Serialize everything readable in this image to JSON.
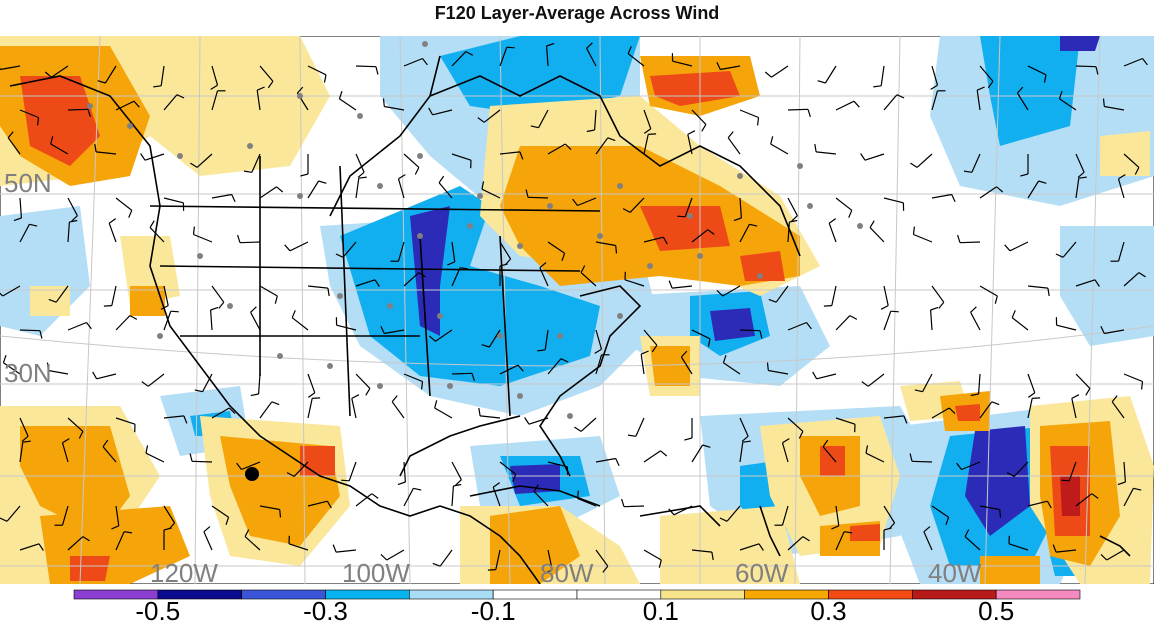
{
  "title": "F120 Layer-Average Across Wind",
  "map": {
    "lat_labels": [
      "50N",
      "30N"
    ],
    "lon_labels": [
      "120W",
      "100W",
      "80W",
      "60W",
      "40W"
    ],
    "label_color": "#808080",
    "marker": "black-dot"
  },
  "colorbar": {
    "labels": [
      "-0.5",
      "-0.3",
      "-0.1",
      "0.1",
      "0.3",
      "0.5"
    ],
    "colors": [
      "#8b3fd1",
      "#0b0b8f",
      "#3b55d9",
      "#09b3f0",
      "#a8ddf5",
      "#ffffff",
      "#ffffff",
      "#f7e38a",
      "#f7a800",
      "#f24b14",
      "#b81a1a",
      "#f48ac0"
    ]
  },
  "palette": {
    "neg_strong": "#2b2bb8",
    "neg_mid": "#12aff0",
    "neg_weak": "#b4def6",
    "pos_weak": "#fae79a",
    "pos_mid": "#f5a50a",
    "pos_strong": "#ee4a18",
    "pos_max": "#c01b1b"
  }
}
